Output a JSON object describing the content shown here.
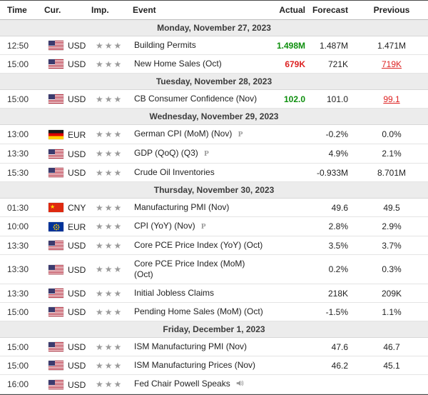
{
  "calendar": {
    "headers": {
      "time": "Time",
      "currency": "Cur.",
      "importance": "Imp.",
      "event": "Event",
      "actual": "Actual",
      "forecast": "Forecast",
      "previous": "Previous"
    },
    "marker_labels": {
      "preliminary": "P"
    },
    "colors": {
      "positive": "#0d8f0d",
      "negative": "#dd2222"
    },
    "sections": [
      {
        "date": "Monday, November 27, 2023",
        "rows": [
          {
            "time": "12:50",
            "flag": "us",
            "currency": "USD",
            "importance": 3,
            "event": "Building Permits",
            "marker": "",
            "actual": "1.498M",
            "actual_style": "good",
            "forecast": "1.487M",
            "previous": "1.471M",
            "previous_style": ""
          },
          {
            "time": "15:00",
            "flag": "us",
            "currency": "USD",
            "importance": 3,
            "event": "New Home Sales (Oct)",
            "marker": "",
            "actual": "679K",
            "actual_style": "bad",
            "forecast": "721K",
            "previous": "719K",
            "previous_style": "revised"
          }
        ]
      },
      {
        "date": "Tuesday, November 28, 2023",
        "rows": [
          {
            "time": "15:00",
            "flag": "us",
            "currency": "USD",
            "importance": 3,
            "event": "CB Consumer Confidence (Nov)",
            "marker": "",
            "actual": "102.0",
            "actual_style": "good",
            "forecast": "101.0",
            "previous": "99.1",
            "previous_style": "revised"
          }
        ]
      },
      {
        "date": "Wednesday, November 29, 2023",
        "rows": [
          {
            "time": "13:00",
            "flag": "de",
            "currency": "EUR",
            "importance": 3,
            "event": "German CPI (MoM) (Nov)",
            "marker": "preliminary",
            "actual": "",
            "actual_style": "",
            "forecast": "-0.2%",
            "previous": "0.0%",
            "previous_style": ""
          },
          {
            "time": "13:30",
            "flag": "us",
            "currency": "USD",
            "importance": 3,
            "event": "GDP (QoQ) (Q3)",
            "marker": "preliminary",
            "actual": "",
            "actual_style": "",
            "forecast": "4.9%",
            "previous": "2.1%",
            "previous_style": ""
          },
          {
            "time": "15:30",
            "flag": "us",
            "currency": "USD",
            "importance": 3,
            "event": "Crude Oil Inventories",
            "marker": "",
            "actual": "",
            "actual_style": "",
            "forecast": "-0.933M",
            "previous": "8.701M",
            "previous_style": ""
          }
        ]
      },
      {
        "date": "Thursday, November 30, 2023",
        "rows": [
          {
            "time": "01:30",
            "flag": "cn",
            "currency": "CNY",
            "importance": 3,
            "event": "Manufacturing PMI (Nov)",
            "marker": "",
            "actual": "",
            "actual_style": "",
            "forecast": "49.6",
            "previous": "49.5",
            "previous_style": ""
          },
          {
            "time": "10:00",
            "flag": "eu",
            "currency": "EUR",
            "importance": 3,
            "event": "CPI (YoY) (Nov)",
            "marker": "preliminary",
            "actual": "",
            "actual_style": "",
            "forecast": "2.8%",
            "previous": "2.9%",
            "previous_style": ""
          },
          {
            "time": "13:30",
            "flag": "us",
            "currency": "USD",
            "importance": 3,
            "event": "Core PCE Price Index (YoY) (Oct)",
            "marker": "",
            "actual": "",
            "actual_style": "",
            "forecast": "3.5%",
            "previous": "3.7%",
            "previous_style": ""
          },
          {
            "time": "13:30",
            "flag": "us",
            "currency": "USD",
            "importance": 3,
            "event": "Core PCE Price Index (MoM) (Oct)",
            "marker": "",
            "actual": "",
            "actual_style": "",
            "forecast": "0.2%",
            "previous": "0.3%",
            "previous_style": ""
          },
          {
            "time": "13:30",
            "flag": "us",
            "currency": "USD",
            "importance": 3,
            "event": "Initial Jobless Claims",
            "marker": "",
            "actual": "",
            "actual_style": "",
            "forecast": "218K",
            "previous": "209K",
            "previous_style": ""
          },
          {
            "time": "15:00",
            "flag": "us",
            "currency": "USD",
            "importance": 3,
            "event": "Pending Home Sales (MoM) (Oct)",
            "marker": "",
            "actual": "",
            "actual_style": "",
            "forecast": "-1.5%",
            "previous": "1.1%",
            "previous_style": ""
          }
        ]
      },
      {
        "date": "Friday, December 1, 2023",
        "rows": [
          {
            "time": "15:00",
            "flag": "us",
            "currency": "USD",
            "importance": 3,
            "event": "ISM Manufacturing PMI (Nov)",
            "marker": "",
            "actual": "",
            "actual_style": "",
            "forecast": "47.6",
            "previous": "46.7",
            "previous_style": ""
          },
          {
            "time": "15:00",
            "flag": "us",
            "currency": "USD",
            "importance": 3,
            "event": "ISM Manufacturing Prices (Nov)",
            "marker": "",
            "actual": "",
            "actual_style": "",
            "forecast": "46.2",
            "previous": "45.1",
            "previous_style": ""
          },
          {
            "time": "16:00",
            "flag": "us",
            "currency": "USD",
            "importance": 3,
            "event": "Fed Chair Powell Speaks",
            "marker": "speech",
            "actual": "",
            "actual_style": "",
            "forecast": "",
            "previous": "",
            "previous_style": ""
          }
        ]
      }
    ]
  }
}
